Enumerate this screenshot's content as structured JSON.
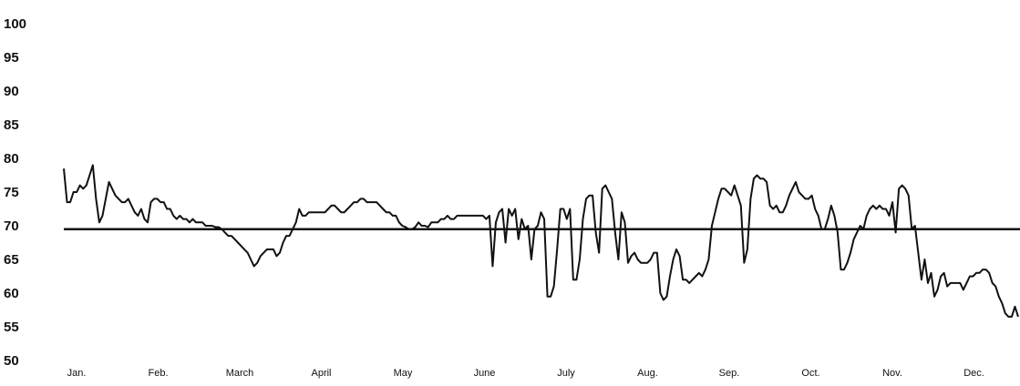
{
  "chart_data": {
    "type": "line",
    "title": "",
    "xlabel": "",
    "ylabel": "",
    "ylim": [
      50,
      100
    ],
    "yticks": [
      "100",
      "95",
      "90",
      "85",
      "80",
      "75",
      "70",
      "65",
      "60",
      "55",
      "50"
    ],
    "months": [
      "Jan.",
      "Feb.",
      "March",
      "April",
      "May",
      "June",
      "July",
      "Aug.",
      "Sep.",
      "Oct.",
      "Nov.",
      "Dec."
    ],
    "reference_line": 69.5,
    "grid": false,
    "legend": "none",
    "line_color": "#111111",
    "series": [
      {
        "values": [
          78.5,
          73.5,
          73.5,
          75,
          75,
          76,
          75.5,
          76,
          77.5,
          79,
          74,
          70.5,
          71.5,
          74,
          76.5,
          75.5,
          74.5,
          74,
          73.5,
          73.5,
          74,
          73,
          72,
          71.5,
          72.5,
          71,
          70.5,
          73.5,
          74,
          74,
          73.5,
          73.5,
          72.5,
          72.5,
          71.5,
          71,
          71.5,
          71,
          71,
          70.5,
          71,
          70.5,
          70.5,
          70.5,
          70,
          70,
          70,
          69.8,
          69.8,
          69.5,
          69,
          68.5,
          68.5,
          68,
          67.5,
          67,
          66.5,
          66,
          65,
          64,
          64.5,
          65.5,
          66,
          66.5,
          66.5,
          66.5,
          65.5,
          66,
          67.5,
          68.5,
          68.5,
          69.5,
          70.5,
          72.5,
          71.5,
          71.5,
          72,
          72,
          72,
          72,
          72,
          72,
          72.5,
          73,
          73,
          72.5,
          72,
          72,
          72.5,
          73,
          73.5,
          73.5,
          74,
          74,
          73.5,
          73.5,
          73.5,
          73.5,
          73,
          72.5,
          72,
          72,
          71.5,
          71.5,
          70.5,
          70,
          69.8,
          69.5,
          69.5,
          69.8,
          70.5,
          70,
          70,
          69.8,
          70.5,
          70.5,
          70.5,
          71,
          71,
          71.5,
          71,
          71,
          71.5,
          71.5,
          71.5,
          71.5,
          71.5,
          71.5,
          71.5,
          71.5,
          71.5,
          71,
          71.5,
          64,
          70.5,
          72,
          72.5,
          67.5,
          72.5,
          71.5,
          72.5,
          68,
          71,
          69.5,
          70,
          65,
          69.5,
          70,
          72,
          71,
          59.5,
          59.5,
          61,
          66.5,
          72.5,
          72.5,
          71,
          72.5,
          62,
          62,
          65,
          71,
          74,
          74.5,
          74.5,
          69,
          66,
          75.5,
          76,
          75,
          74,
          69,
          65,
          72,
          70.5,
          64.5,
          65.5,
          66,
          65,
          64.5,
          64.5,
          64.5,
          65,
          66,
          66,
          60,
          59,
          59.5,
          62.5,
          65,
          66.5,
          65.5,
          62,
          62,
          61.5,
          62,
          62.5,
          63,
          62.5,
          63.5,
          65,
          70,
          72,
          74,
          75.5,
          75.5,
          75,
          74.5,
          76,
          74.5,
          73,
          64.5,
          66.5,
          74,
          77,
          77.5,
          77,
          77,
          76.5,
          73,
          72.5,
          73,
          72,
          72,
          73,
          74.5,
          75.5,
          76.5,
          75,
          74.5,
          74,
          74,
          74.5,
          72.5,
          71.5,
          69.5,
          69.5,
          71,
          73,
          71.5,
          69,
          63.5,
          63.5,
          64.5,
          66,
          68,
          69,
          70,
          69.5,
          71.5,
          72.5,
          73,
          72.5,
          73,
          72.5,
          72.5,
          71.5,
          73.5,
          69,
          75.5,
          76,
          75.5,
          74.5,
          69.5,
          70,
          66,
          62,
          65,
          61.5,
          63,
          59.5,
          60.5,
          62.5,
          63,
          61,
          61.5,
          61.5,
          61.5,
          61.5,
          60.5,
          61.5,
          62.5,
          62.5,
          63,
          63,
          63.5,
          63.5,
          63,
          61.5,
          61,
          59.5,
          58.5,
          57,
          56.5,
          56.5,
          58,
          56.5
        ]
      }
    ]
  }
}
